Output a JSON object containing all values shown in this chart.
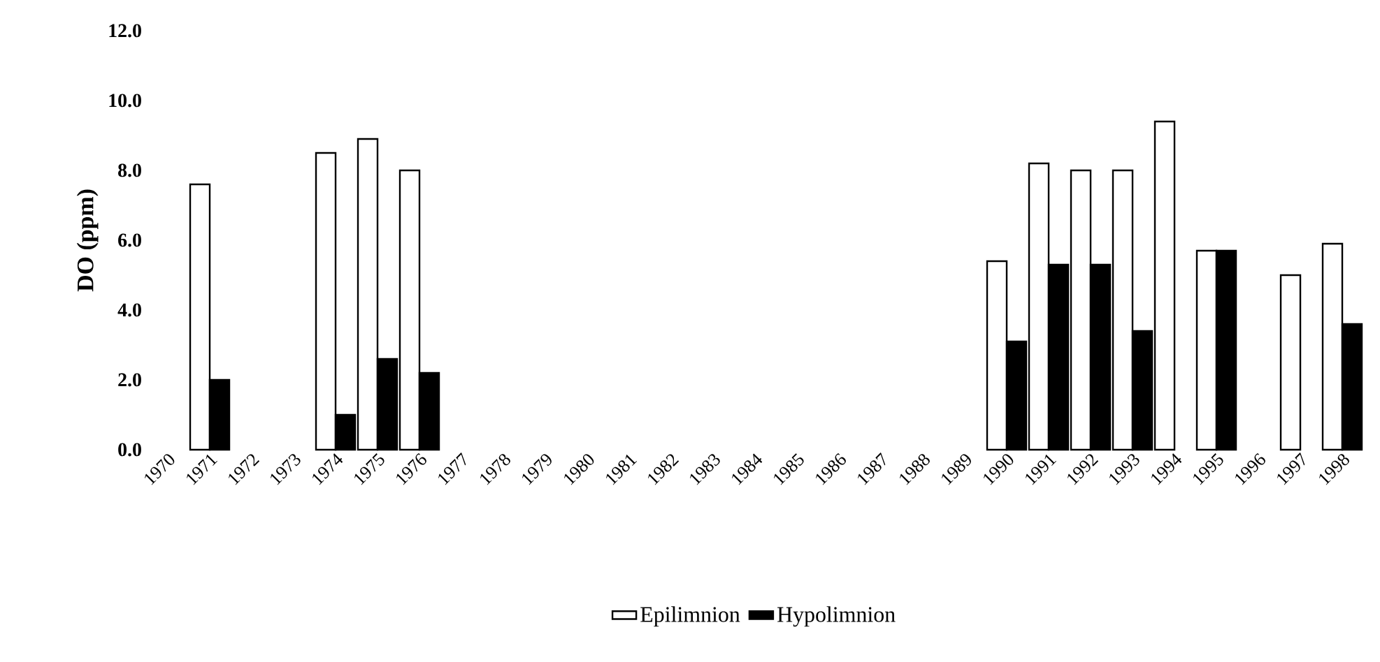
{
  "chart_data": {
    "type": "bar",
    "ylabel": "DO (ppm)",
    "categories": [
      "1970",
      "1971",
      "1972",
      "1973",
      "1974",
      "1975",
      "1976",
      "1977",
      "1978",
      "1979",
      "1980",
      "1981",
      "1982",
      "1983",
      "1984",
      "1985",
      "1986",
      "1987",
      "1988",
      "1989",
      "1990",
      "1991",
      "1992",
      "1993",
      "1994",
      "1995",
      "1996",
      "1997",
      "1998"
    ],
    "series": [
      {
        "name": "Epilimnion",
        "color": "#ffffff",
        "values": [
          null,
          7.6,
          null,
          null,
          8.5,
          8.9,
          8.0,
          null,
          null,
          null,
          null,
          null,
          null,
          null,
          null,
          null,
          null,
          null,
          null,
          null,
          5.4,
          8.2,
          8.0,
          8.0,
          9.4,
          5.7,
          null,
          5.0,
          5.9
        ]
      },
      {
        "name": "Hypolimnion",
        "color": "#000000",
        "values": [
          null,
          2.0,
          null,
          null,
          1.0,
          2.6,
          2.2,
          null,
          null,
          null,
          null,
          null,
          null,
          null,
          null,
          null,
          null,
          null,
          null,
          null,
          3.1,
          5.3,
          5.3,
          3.4,
          null,
          5.7,
          null,
          null,
          3.6
        ]
      }
    ],
    "ylim": [
      0,
      12
    ],
    "yticks": [
      {
        "value": 0,
        "label": "0.0"
      },
      {
        "value": 2,
        "label": "2.0"
      },
      {
        "value": 4,
        "label": "4.0"
      },
      {
        "value": 6,
        "label": "6.0"
      },
      {
        "value": 8,
        "label": "8.0"
      },
      {
        "value": 10,
        "label": "10.0"
      },
      {
        "value": 12,
        "label": "12.0"
      }
    ],
    "legend": "bottom"
  }
}
